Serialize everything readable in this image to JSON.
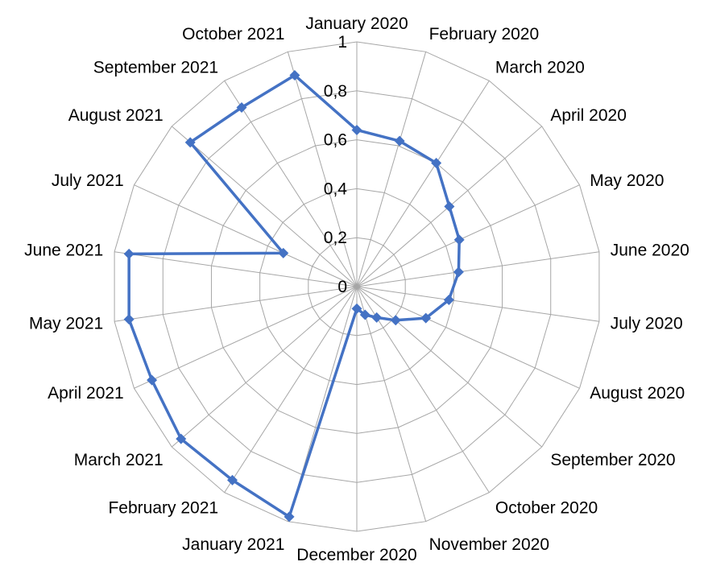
{
  "chart_data": {
    "type": "radar",
    "categories": [
      "January 2020",
      "February 2020",
      "March 2020",
      "April 2020",
      "May 2020",
      "June 2020",
      "July 2020",
      "August 2020",
      "September 2020",
      "October 2020",
      "November 2020",
      "December 2020",
      "January 2021",
      "February 2021",
      "March 2021",
      "April 2021",
      "May 2021",
      "June 2021",
      "July 2021",
      "August 2021",
      "September 2021",
      "October 2021"
    ],
    "series": [
      {
        "values": [
          0.64,
          0.62,
          0.6,
          0.5,
          0.46,
          0.42,
          0.38,
          0.31,
          0.21,
          0.15,
          0.12,
          0.09,
          0.98,
          0.94,
          0.95,
          0.92,
          0.94,
          0.94,
          0.33,
          0.9,
          0.87,
          0.9
        ],
        "color": "#4472c4"
      }
    ],
    "rlim": [
      0,
      1
    ],
    "ticks": [
      "0",
      "0,2",
      "0,4",
      "0,6",
      "0,8",
      "1"
    ],
    "grid": true,
    "legend": "none"
  }
}
